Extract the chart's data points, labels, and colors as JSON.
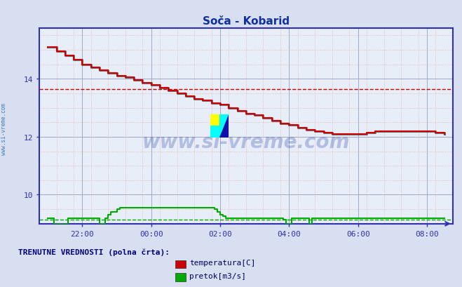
{
  "title": "Soča - Kobarid",
  "bg_color": "#d8dff0",
  "plot_bg_color": "#e8eef8",
  "grid_color_major": "#c8a0a0",
  "grid_color_dotted": "#e0b0b0",
  "grid_color_blue_major": "#a0a8c8",
  "grid_color_blue_minor": "#c0c8e0",
  "axis_color": "#3030b0",
  "tick_color": "#3070b0",
  "xlabel_color": "#3070b0",
  "ylabel_color": "#3070b0",
  "title_color": "#1030a0",
  "watermark_text": "www.si-vreme.com",
  "watermark_color": "#1030a0",
  "watermark_alpha": 0.25,
  "side_text": "www.si-vreme.com",
  "side_text_color": "#3070b0",
  "legend_label": "TRENUTNE VREDNOSTI (polna črta):",
  "legend_label_color": "#000080",
  "temp_color": "#cc0000",
  "temp_shadow_color": "#000000",
  "flow_color": "#00aa00",
  "temp_avg": 13.65,
  "flow_avg": 9.15,
  "temp_avg_color": "#cc0000",
  "flow_avg_color": "#00aa00",
  "xlim_hours": [
    -0.25,
    11.75
  ],
  "ylim": [
    9.0,
    15.75
  ],
  "xtick_pos": [
    1,
    3,
    5,
    7,
    9,
    11
  ],
  "xtick_labels": [
    "22:00",
    "00:00",
    "02:00",
    "04:00",
    "06:00",
    "08:00"
  ],
  "ytick_pos": [
    10,
    12,
    14
  ],
  "ytick_labels": [
    "10",
    "12",
    "14"
  ],
  "temp_x": [
    0.0,
    0.25,
    0.5,
    0.75,
    1.0,
    1.25,
    1.5,
    1.75,
    2.0,
    2.25,
    2.5,
    2.75,
    3.0,
    3.25,
    3.5,
    3.75,
    4.0,
    4.25,
    4.5,
    4.75,
    5.0,
    5.25,
    5.5,
    5.75,
    6.0,
    6.25,
    6.5,
    6.75,
    7.0,
    7.25,
    7.5,
    7.75,
    8.0,
    8.25,
    8.5,
    8.75,
    9.0,
    9.25,
    9.5,
    9.75,
    10.0,
    10.25,
    10.5,
    10.75,
    11.0,
    11.25,
    11.5
  ],
  "temp_y": [
    15.1,
    14.95,
    14.8,
    14.65,
    14.5,
    14.4,
    14.3,
    14.2,
    14.1,
    14.05,
    13.95,
    13.85,
    13.8,
    13.7,
    13.6,
    13.5,
    13.4,
    13.3,
    13.25,
    13.15,
    13.1,
    13.0,
    12.9,
    12.8,
    12.75,
    12.65,
    12.55,
    12.45,
    12.4,
    12.3,
    12.25,
    12.2,
    12.15,
    12.1,
    12.1,
    12.1,
    12.1,
    12.15,
    12.2,
    12.2,
    12.2,
    12.2,
    12.2,
    12.2,
    12.2,
    12.15,
    12.1
  ],
  "flow_x": [
    0.0,
    0.08,
    0.17,
    0.25,
    0.5,
    0.58,
    1.33,
    1.5,
    1.58,
    1.67,
    1.75,
    1.83,
    2.0,
    2.08,
    2.17,
    2.25,
    4.75,
    4.83,
    4.92,
    5.0,
    5.08,
    5.17,
    5.33,
    6.75,
    6.83,
    6.92,
    7.0,
    7.08,
    7.5,
    7.58,
    7.67,
    11.5
  ],
  "flow_y": [
    9.2,
    9.2,
    9.0,
    9.0,
    9.0,
    9.2,
    9.2,
    9.0,
    9.0,
    9.2,
    9.3,
    9.4,
    9.5,
    9.55,
    9.55,
    9.55,
    9.55,
    9.5,
    9.4,
    9.3,
    9.25,
    9.2,
    9.2,
    9.2,
    9.15,
    9.0,
    9.0,
    9.2,
    9.2,
    9.0,
    9.2,
    9.2
  ]
}
